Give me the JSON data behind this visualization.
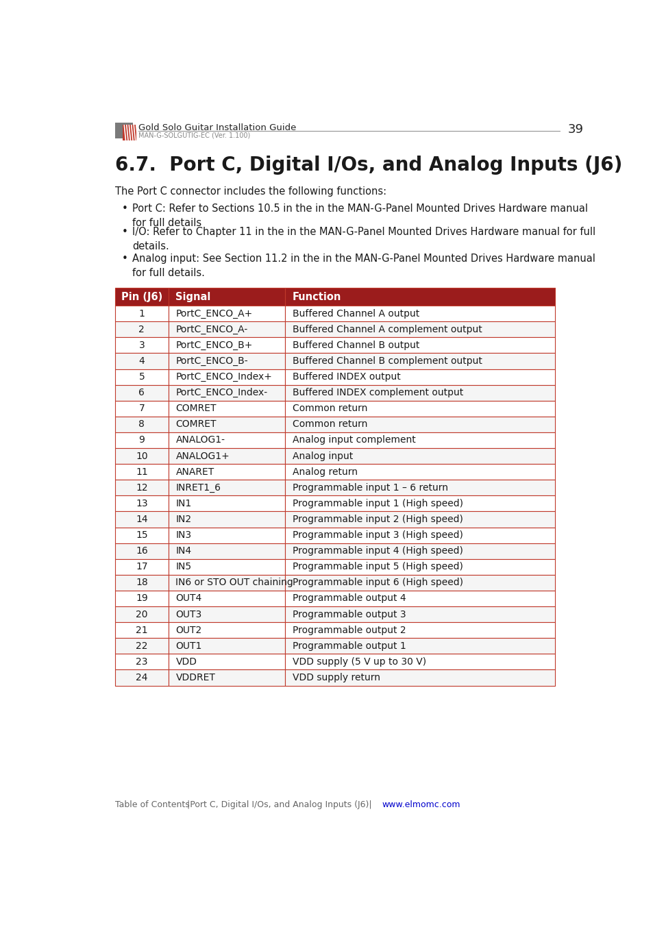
{
  "page_number": "39",
  "header_title": "Gold Solo Guitar Installation Guide",
  "header_subtitle": "MAN-G-SOLGUTIG-EC (Ver. 1.100)",
  "section_title": "6.7.  Port C, Digital I/Os, and Analog Inputs (J6)",
  "intro_text": "The Port C connector includes the following functions:",
  "bullets": [
    "Port C: Refer to Sections 10.5 in the in the MAN-G-Panel Mounted Drives Hardware manual\nfor full details",
    "I/O: Refer to Chapter 11 in the in the MAN-G-Panel Mounted Drives Hardware manual for full\ndetails.",
    "Analog input: See Section 11.2 in the in the MAN-G-Panel Mounted Drives Hardware manual\nfor full details."
  ],
  "table_header": [
    "Pin (J6)",
    "Signal",
    "Function"
  ],
  "table_rows": [
    [
      "1",
      "PortC_ENCO_A+",
      "Buffered Channel A output"
    ],
    [
      "2",
      "PortC_ENCO_A-",
      "Buffered Channel A complement output"
    ],
    [
      "3",
      "PortC_ENCO_B+",
      "Buffered Channel B output"
    ],
    [
      "4",
      "PortC_ENCO_B-",
      "Buffered Channel B complement output"
    ],
    [
      "5",
      "PortC_ENCO_Index+",
      "Buffered INDEX output"
    ],
    [
      "6",
      "PortC_ENCO_Index-",
      "Buffered INDEX complement output"
    ],
    [
      "7",
      "COMRET",
      "Common return"
    ],
    [
      "8",
      "COMRET",
      "Common return"
    ],
    [
      "9",
      "ANALOG1-",
      "Analog input complement"
    ],
    [
      "10",
      "ANALOG1+",
      "Analog input"
    ],
    [
      "11",
      "ANARET",
      "Analog return"
    ],
    [
      "12",
      "INRET1_6",
      "Programmable input 1 – 6 return"
    ],
    [
      "13",
      "IN1",
      "Programmable input 1 (High speed)"
    ],
    [
      "14",
      "IN2",
      "Programmable input 2 (High speed)"
    ],
    [
      "15",
      "IN3",
      "Programmable input 3 (High speed)"
    ],
    [
      "16",
      "IN4",
      "Programmable input 4 (High speed)"
    ],
    [
      "17",
      "IN5",
      "Programmable input 5 (High speed)"
    ],
    [
      "18",
      "IN6 or STO OUT chaining",
      "Programmable input 6 (High speed)"
    ],
    [
      "19",
      "OUT4",
      "Programmable output 4"
    ],
    [
      "20",
      "OUT3",
      "Programmable output 3"
    ],
    [
      "21",
      "OUT2",
      "Programmable output 2"
    ],
    [
      "22",
      "OUT1",
      "Programmable output 1"
    ],
    [
      "23",
      "VDD",
      "VDD supply (5 V up to 30 V)"
    ],
    [
      "24",
      "VDDRET",
      "VDD supply return"
    ]
  ],
  "header_bg": "#9B1C1C",
  "header_text_color": "#FFFFFF",
  "row_bg_odd": "#FFFFFF",
  "row_bg_even": "#F5F5F5",
  "border_color": "#C0392B",
  "footer_text_color": "#666666",
  "footer_link_color": "#0000CC",
  "title_color": "#1a1a1a",
  "body_color": "#1a1a1a",
  "logo_gray": "#7a7a7a",
  "logo_red": "#C0392B",
  "page_bg": "#FFFFFF",
  "header_line_color": "#888888"
}
